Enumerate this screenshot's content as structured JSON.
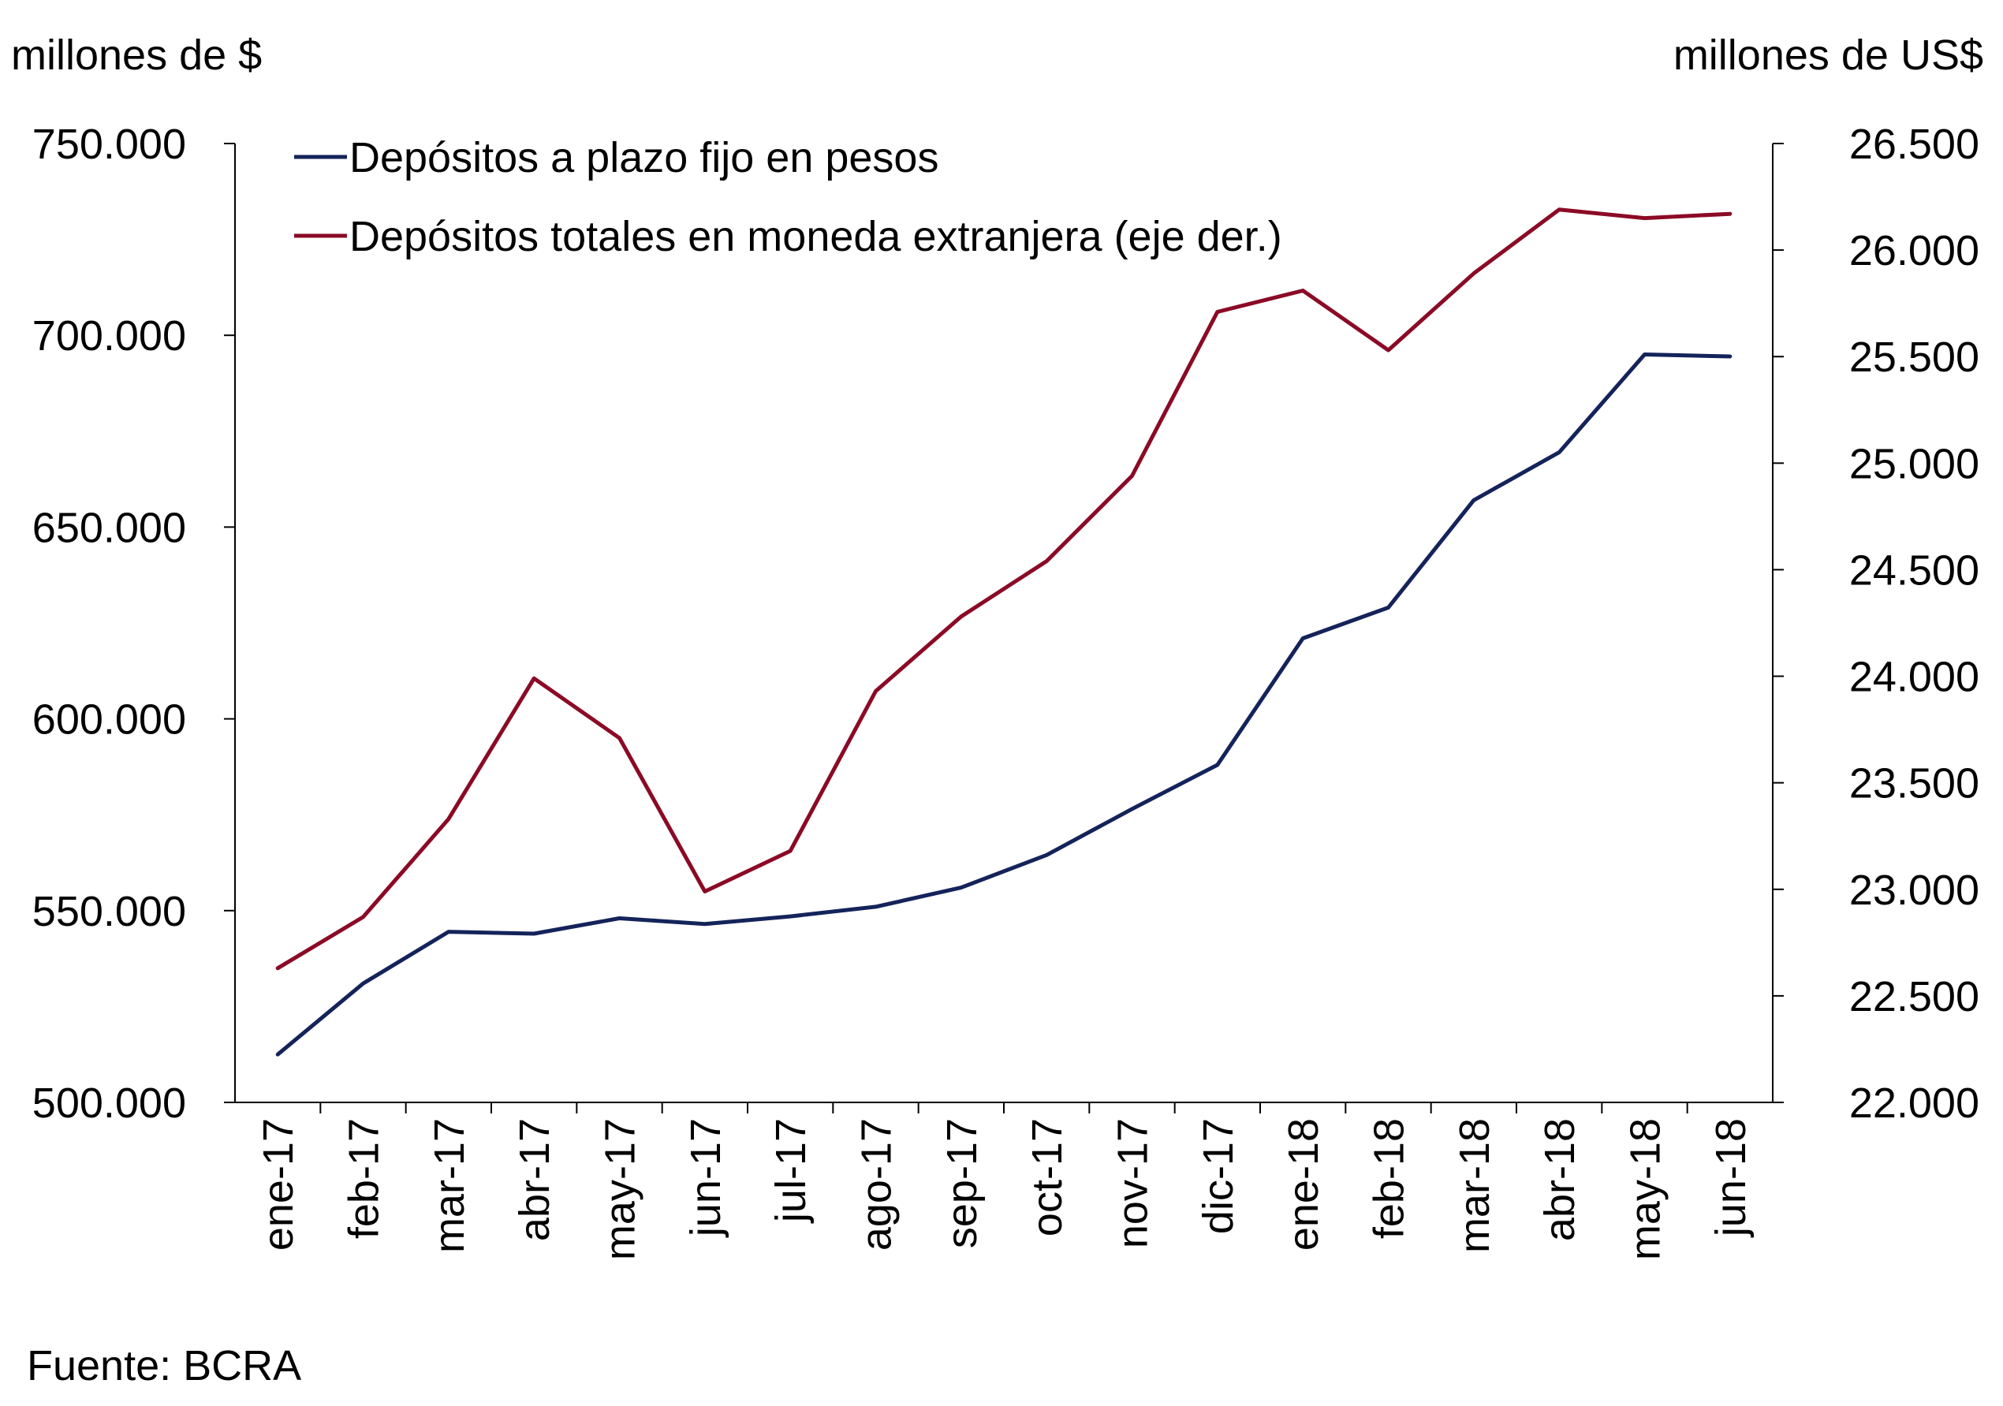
{
  "chart_data": {
    "type": "line",
    "title": "",
    "left_axis_unit": "millones de $",
    "right_axis_unit": "millones de US$",
    "source": "Fuente:  BCRA",
    "categories": [
      "ene-17",
      "feb-17",
      "mar-17",
      "abr-17",
      "may-17",
      "jun-17",
      "jul-17",
      "ago-17",
      "sep-17",
      "oct-17",
      "nov-17",
      "dic-17",
      "ene-18",
      "feb-18",
      "mar-18",
      "abr-18",
      "may-18",
      "jun-18"
    ],
    "left_axis": {
      "ylim": [
        500000,
        750000
      ],
      "ticks": [
        500000,
        550000,
        600000,
        650000,
        700000,
        750000
      ],
      "tick_labels": [
        "500.000",
        "550.000",
        "600.000",
        "650.000",
        "700.000",
        "750.000"
      ]
    },
    "right_axis": {
      "ylim": [
        22000,
        26500
      ],
      "ticks": [
        22000,
        22500,
        23000,
        23500,
        24000,
        24500,
        25000,
        25500,
        26000,
        26500
      ],
      "tick_labels": [
        "22.000",
        "22.500",
        "23.000",
        "23.500",
        "24.000",
        "24.500",
        "25.000",
        "25.500",
        "26.000",
        "26.500"
      ]
    },
    "series": [
      {
        "name": "Depósitos a plazo fijo en pesos",
        "axis": "left",
        "color": "#14235a",
        "values": [
          512500,
          531000,
          544500,
          544000,
          548000,
          546500,
          548500,
          551000,
          556000,
          564500,
          576500,
          588000,
          621000,
          629000,
          657000,
          669500,
          695000,
          694500
        ]
      },
      {
        "name": "Depósitos totales en moneda extranjera (eje der.)",
        "axis": "right",
        "color": "#8b0a25",
        "values": [
          22630,
          22870,
          23330,
          23990,
          23710,
          22990,
          23180,
          23930,
          24280,
          24540,
          24940,
          25710,
          25810,
          25530,
          25890,
          26190,
          26150,
          26170
        ]
      }
    ],
    "legend_position": "top-left",
    "grid": false
  }
}
